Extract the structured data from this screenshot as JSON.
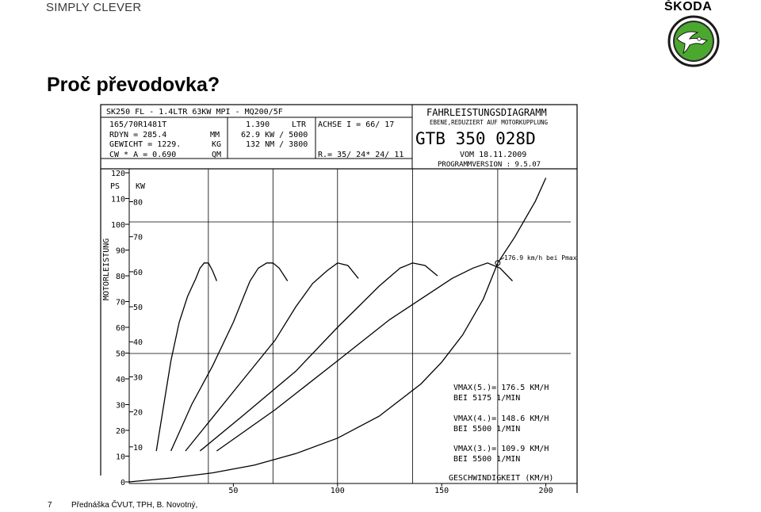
{
  "header": {
    "brand_tagline": "SIMPLY CLEVER",
    "brand_name": "ŠKODA",
    "logo_icon": "skoda-winged-arrow-icon",
    "brand_color": "#4ba82e"
  },
  "slide": {
    "title": "Proč převodovka?",
    "page_number": "7",
    "footer_text": "Přednáška ČVUT, TPH, B. Novotný,"
  },
  "chart_data": {
    "type": "line",
    "title": "FAHRLEISTUNGSDIAGRAMM",
    "subtitle": "EBENE,REDUZIERT AUF MOTORKUPPLUNG",
    "diagram_id": "GTB 350 028D",
    "date": "VOM 18.11.2009",
    "program_version": "PROGRAMMVERSION : 9.5.07",
    "info": {
      "vehicle": "SK250 FL - 1.4LTR 63KW MPI - MQ200/5F",
      "tyre": "165/70R1481T",
      "rdyn": "RDYN    =  285.4",
      "rdyn_unit": "MM",
      "mass": "GEWICHT =  1229.",
      "mass_unit": "KG",
      "cwa": "CW * A  =  0.690",
      "cwa_unit": "QM",
      "displacement": "1.390",
      "displacement_unit": "LTR",
      "power": "62.9 KW / 5000",
      "torque": "132 NM / 3800",
      "axle": "ACHSE I  =  66/ 17",
      "ratio": "R.= 35/ 24* 24/ 11"
    },
    "xlabel": "GESCHWINDIGKEIT (KM/H)",
    "ylabel": "MOTORLEISTUNG",
    "unit_ps": "PS",
    "unit_kw": "KW",
    "xlim": [
      0,
      215
    ],
    "ps_lim": [
      0,
      120
    ],
    "x_ticks": [
      "50",
      "100",
      "150",
      "200"
    ],
    "ps_ticks": [
      "0",
      "10",
      "20",
      "30",
      "40",
      "50",
      "60",
      "70",
      "80",
      "90",
      "100",
      "110",
      "120"
    ],
    "kw_ticks": [
      "10",
      "20",
      "30",
      "40",
      "50",
      "60",
      "70",
      "80"
    ],
    "series": [
      {
        "name": "",
        "role": "gear",
        "x": [
          13,
          17,
          20,
          24,
          28,
          32,
          34,
          36,
          38,
          40,
          42
        ],
        "y": [
          12,
          32,
          47,
          62,
          72,
          79,
          83,
          85,
          85,
          82,
          78
        ]
      },
      {
        "name": "",
        "role": "gear",
        "x": [
          20,
          30,
          40,
          50,
          55,
          58,
          62,
          66,
          69,
          72,
          76
        ],
        "y": [
          12,
          30,
          45,
          62,
          72,
          78,
          83,
          85,
          85,
          83,
          78
        ]
      },
      {
        "name": "",
        "role": "gear",
        "x": [
          27,
          40,
          55,
          70,
          80,
          88,
          95,
          100,
          105,
          110
        ],
        "y": [
          12,
          25,
          40,
          55,
          68,
          77,
          82,
          85,
          84,
          79
        ]
      },
      {
        "name": "",
        "role": "gear",
        "x": [
          34,
          55,
          80,
          100,
          110,
          120,
          130,
          136,
          142,
          148
        ],
        "y": [
          12,
          26,
          43,
          60,
          68,
          76,
          83,
          85,
          84,
          80
        ]
      },
      {
        "name": "",
        "role": "gear",
        "x": [
          42,
          70,
          100,
          125,
          140,
          155,
          165,
          172,
          178,
          184
        ],
        "y": [
          12,
          28,
          47,
          63,
          71,
          79,
          83,
          85,
          83,
          78
        ]
      },
      {
        "name": "",
        "role": "resistance",
        "x": [
          0,
          20,
          40,
          60,
          80,
          100,
          120,
          140,
          150,
          160,
          170,
          176.9,
          185,
          195,
          200
        ],
        "y": [
          0,
          1.5,
          3.5,
          6.5,
          11,
          17,
          25.5,
          38,
          46.5,
          57,
          71,
          85,
          95,
          109,
          118
        ]
      }
    ],
    "peak_markers_kmh": [
      38,
      69,
      100,
      136,
      176.9
    ],
    "annotation": "176.9 km/h bei Pmax",
    "results": [
      {
        "vmax": "VMAX(5.)=  176.5 KM/H",
        "bei": "BEI        5175 1/MIN"
      },
      {
        "vmax": "VMAX(4.)=  148.6 KM/H",
        "bei": "BEI        5500 1/MIN"
      },
      {
        "vmax": "VMAX(3.)=  109.9 KM/H",
        "bei": "BEI        5500 1/MIN"
      }
    ],
    "grid": true,
    "line_color": "#000000"
  }
}
